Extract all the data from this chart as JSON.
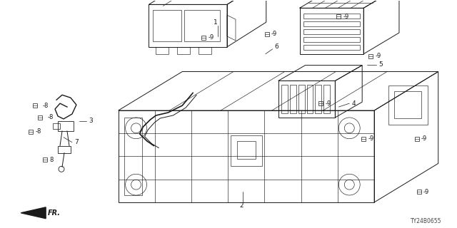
{
  "part_number": "TY24B0655",
  "background_color": "#ffffff",
  "fig_width": 6.4,
  "fig_height": 3.2,
  "dpi": 100,
  "line_color": "#1a1a1a",
  "label_color": "#1a1a1a"
}
